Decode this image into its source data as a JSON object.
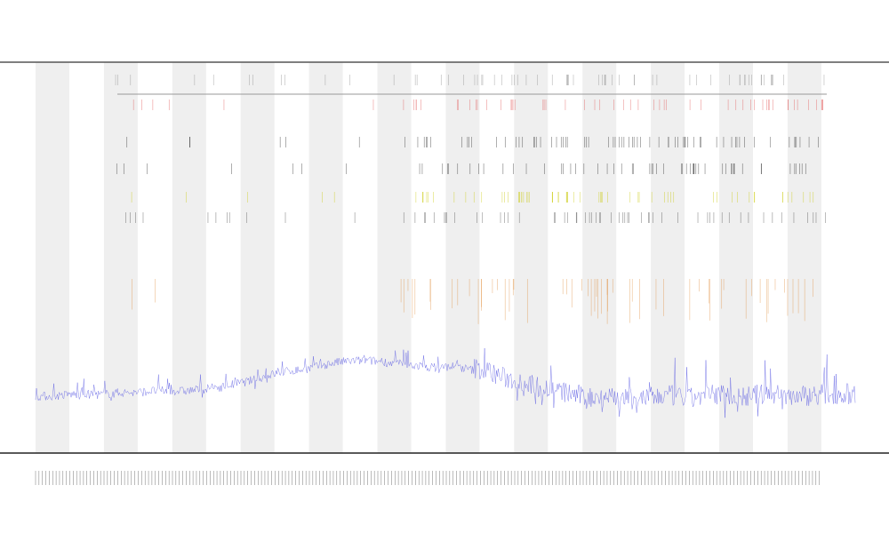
{
  "chart_data": {
    "type": "line",
    "title": "",
    "xlabel": "",
    "ylabel": "",
    "ylim": [
      0,
      1
    ],
    "grid": false,
    "legend": "top-left",
    "band_count": 12,
    "series": [
      {
        "color": "#4a4ae0",
        "values": [
          0.11,
          0.11,
          0.12,
          0.12,
          0.12,
          0.13,
          0.13,
          0.14,
          0.14,
          0.14,
          0.15,
          0.16,
          0.18,
          0.2,
          0.23,
          0.25,
          0.26,
          0.28,
          0.3,
          0.31,
          0.31,
          0.3,
          0.29,
          0.28,
          0.27,
          0.28,
          0.26,
          0.24,
          0.2,
          0.18,
          0.15,
          0.13,
          0.11,
          0.09,
          0.1,
          0.08,
          0.08,
          0.09,
          0.1,
          0.08,
          0.1,
          0.11,
          0.09,
          0.1,
          0.11,
          0.1,
          0.1,
          0.11,
          0.11,
          0.11
        ]
      }
    ],
    "event_rows": [
      {
        "color": "#888888"
      },
      {
        "color": "#e05050"
      },
      {
        "color": "#222222"
      },
      {
        "color": "#222222"
      },
      {
        "color": "#c8c800"
      },
      {
        "color": "#444444"
      },
      {
        "color": "#e09040"
      }
    ],
    "colors": {
      "band": "#efefef",
      "axis": "#555555",
      "line": "#4a4ae0"
    }
  }
}
